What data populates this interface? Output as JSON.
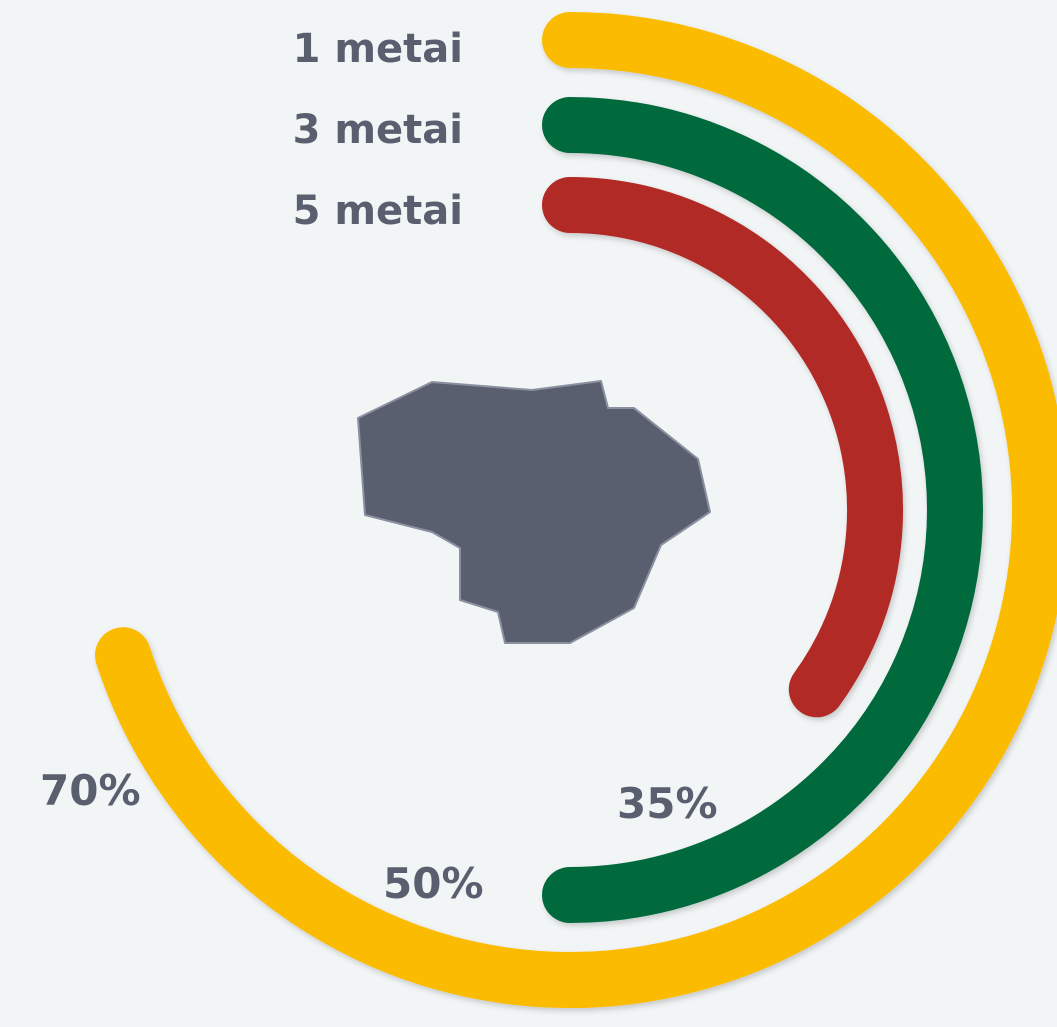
{
  "chart_data": {
    "type": "radial-bar",
    "title": "",
    "max_value": 100,
    "series": [
      {
        "name": "1 metai",
        "value": 70,
        "value_label": "70%",
        "color": "#fbbb00"
      },
      {
        "name": "3 metai",
        "value": 50,
        "value_label": "50%",
        "color": "#006a3d"
      },
      {
        "name": "5 metai",
        "value": 35,
        "value_label": "35%",
        "color": "#b22a25"
      }
    ],
    "label_color": "#5a5f70",
    "center_icon": "lithuania-map-icon",
    "center_icon_color": "#5a5f70"
  }
}
